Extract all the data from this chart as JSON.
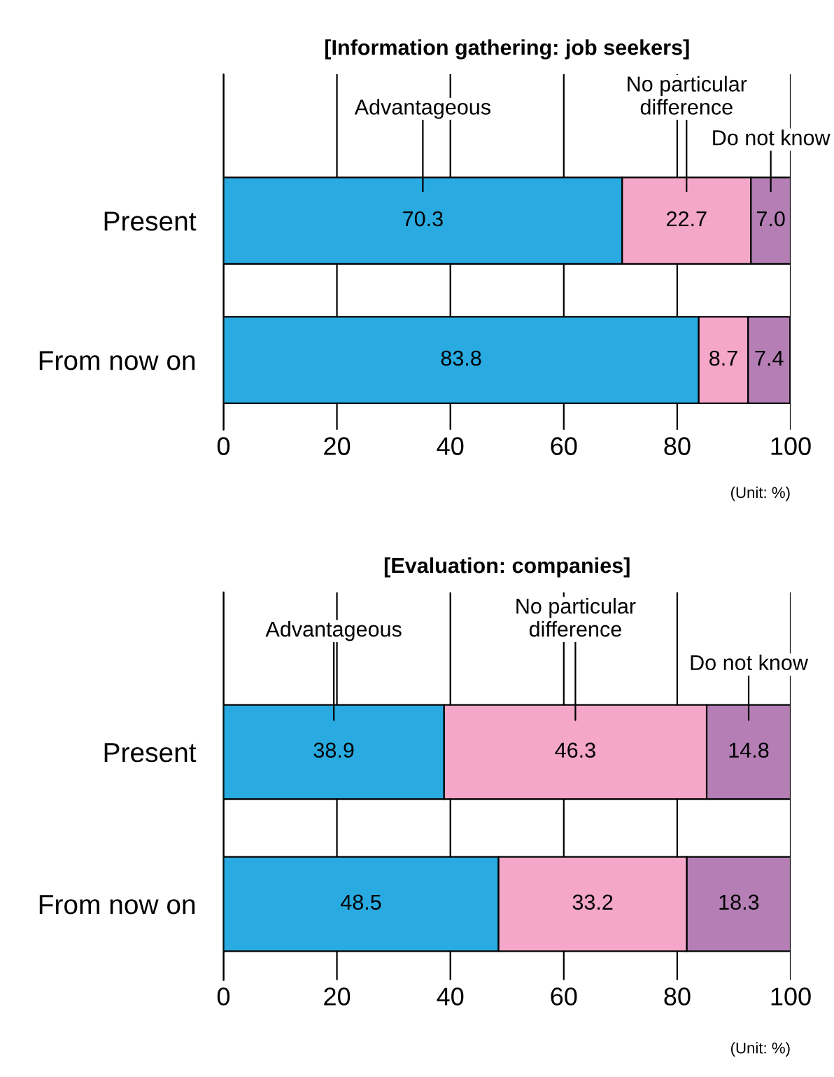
{
  "chart_data": [
    {
      "type": "bar",
      "title": "[Information gathering: job seekers]",
      "orientation": "horizontal",
      "stacked": true,
      "categories": [
        "Present",
        "From now on"
      ],
      "series": [
        {
          "name": "Advantageous",
          "color": "#29aae1",
          "values": [
            70.3,
            83.8
          ],
          "value_labels": [
            "70.3",
            "83.8"
          ]
        },
        {
          "name": "No particular\ndifference",
          "color": "#f4a7c9",
          "values": [
            22.7,
            8.7
          ],
          "value_labels": [
            "22.7",
            "8.7"
          ]
        },
        {
          "name": "Do not know",
          "color": "#b57fb6",
          "values": [
            7.0,
            7.4
          ],
          "value_labels": [
            "7.0",
            "7.4"
          ]
        }
      ],
      "xlim": [
        0,
        100
      ],
      "xticks": [
        0,
        20,
        40,
        60,
        80,
        100
      ],
      "grid": "x",
      "annotations": [
        "(Unit: %)"
      ]
    },
    {
      "type": "bar",
      "title": "[Evaluation: companies]",
      "orientation": "horizontal",
      "stacked": true,
      "categories": [
        "Present",
        "From now on"
      ],
      "series": [
        {
          "name": "Advantageous",
          "color": "#29aae1",
          "values": [
            38.9,
            48.5
          ]
        },
        {
          "name": "No particular\ndifference",
          "color": "#f4a7c9",
          "values": [
            46.3,
            33.2
          ]
        },
        {
          "name": "Do not know",
          "color": "#b57fb6",
          "values": [
            14.8,
            18.3
          ]
        }
      ],
      "data_labels": true,
      "xlim": [
        0,
        100
      ],
      "xticks": [
        0,
        20,
        40,
        60,
        80,
        100
      ],
      "grid": "x",
      "annotations": [
        "(Unit: %)"
      ]
    }
  ]
}
